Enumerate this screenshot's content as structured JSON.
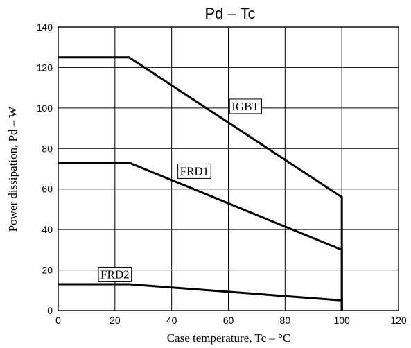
{
  "chart_data": {
    "type": "line",
    "title": "Pd  –  Tc",
    "xlabel": "Case temperature, Tc  –  °C",
    "ylabel": "Power dissipation, Pd  –  W",
    "xlim": [
      0,
      120
    ],
    "ylim": [
      0,
      140
    ],
    "xticks": [
      0,
      20,
      40,
      60,
      80,
      100,
      120
    ],
    "yticks": [
      0,
      20,
      40,
      60,
      80,
      100,
      120,
      140
    ],
    "grid": true,
    "series": [
      {
        "name": "IGBT",
        "x": [
          0,
          25,
          100,
          100
        ],
        "y": [
          125,
          125,
          56,
          0
        ]
      },
      {
        "name": "FRD1",
        "x": [
          0,
          25,
          100,
          100
        ],
        "y": [
          73,
          73,
          30,
          0
        ]
      },
      {
        "name": "FRD2",
        "x": [
          0,
          25,
          100,
          100
        ],
        "y": [
          13,
          13,
          5,
          0
        ]
      }
    ],
    "annotations": [
      {
        "text": "IGBT",
        "series": "IGBT"
      },
      {
        "text": "FRD1",
        "series": "FRD1"
      },
      {
        "text": "FRD2",
        "series": "FRD2"
      }
    ]
  }
}
